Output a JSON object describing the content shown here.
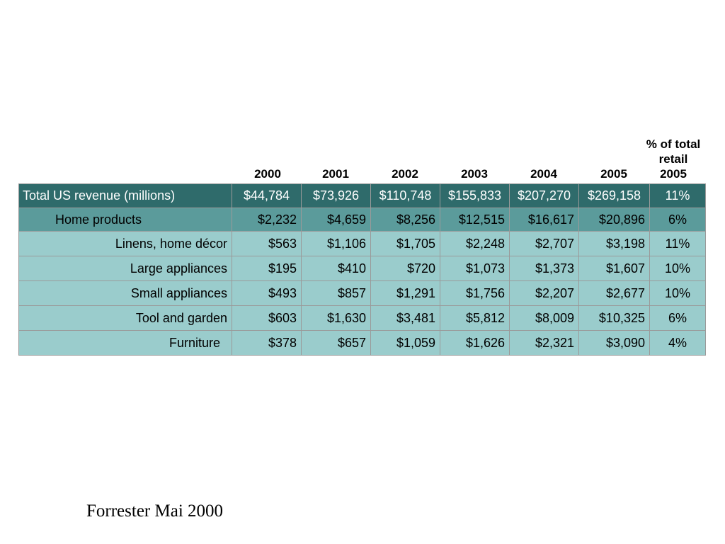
{
  "table": {
    "year_headers": [
      "2000",
      "2001",
      "2002",
      "2003",
      "2004",
      "2005"
    ],
    "pct_header_lines": [
      "% of total",
      "retail",
      "2005"
    ],
    "total_row": {
      "label": "Total US revenue (millions)",
      "values": [
        "$44,784",
        "$73,926",
        "$110,748",
        "$155,833",
        "$207,270",
        "$269,158"
      ],
      "pct": "11%"
    },
    "home_row": {
      "label": "Home products",
      "values": [
        "$2,232",
        "$4,659",
        "$8,256",
        "$12,515",
        "$16,617",
        "$20,896"
      ],
      "pct": "6%"
    },
    "category_rows": [
      {
        "label": "Linens, home décor",
        "values": [
          "$563",
          "$1,106",
          "$1,705",
          "$2,248",
          "$2,707",
          "$3,198"
        ],
        "pct": "11%"
      },
      {
        "label": "Large appliances",
        "values": [
          "$195",
          "$410",
          "$720",
          "$1,073",
          "$1,373",
          "$1,607"
        ],
        "pct": "10%"
      },
      {
        "label": "Small appliances",
        "values": [
          "$493",
          "$857",
          "$1,291",
          "$1,756",
          "$2,207",
          "$2,677"
        ],
        "pct": "10%"
      },
      {
        "label": "Tool and garden",
        "values": [
          "$603",
          "$1,630",
          "$3,481",
          "$5,812",
          "$8,009",
          "$10,325"
        ],
        "pct": "6%"
      },
      {
        "label": "Furniture",
        "values": [
          "$378",
          "$657",
          "$1,059",
          "$1,626",
          "$2,321",
          "$3,090"
        ],
        "pct": "4%"
      }
    ],
    "colors": {
      "total_row_bg": "#2f6b6b",
      "home_row_bg": "#5b9b9b",
      "category_row_bg": "#9acccc"
    }
  },
  "footer": {
    "source": "Forrester Mai 2000"
  }
}
